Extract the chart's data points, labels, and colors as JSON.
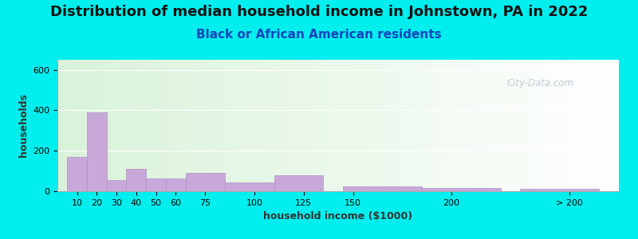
{
  "title": "Distribution of median household income in Johnstown, PA in 2022",
  "subtitle": "Black or African American residents",
  "xlabel": "household income ($1000)",
  "ylabel": "households",
  "background_outer": "#00EEEE",
  "bar_color": "#C8A8D8",
  "bar_edge_color": "#B090C8",
  "ylim": [
    0,
    650
  ],
  "yticks": [
    0,
    200,
    400,
    600
  ],
  "watermark": "City-Data.com",
  "title_fontsize": 13,
  "subtitle_fontsize": 11,
  "axis_label_fontsize": 9,
  "bar_left_edges": [
    5,
    15,
    25,
    35,
    45,
    55,
    65,
    85,
    110,
    145,
    185,
    235
  ],
  "bar_widths": [
    10,
    10,
    10,
    10,
    10,
    10,
    20,
    25,
    25,
    40,
    40,
    40
  ],
  "bar_heights": [
    170,
    390,
    55,
    110,
    65,
    65,
    90,
    45,
    80,
    25,
    15,
    10
  ],
  "xtick_positions": [
    10,
    20,
    30,
    40,
    50,
    60,
    75,
    100,
    125,
    150,
    200,
    260
  ],
  "xtick_labels": [
    "10",
    "20",
    "30",
    "40",
    "50",
    "60",
    "75",
    "100",
    "125",
    "150",
    "200",
    "> 200"
  ],
  "xlim": [
    0,
    285
  ]
}
